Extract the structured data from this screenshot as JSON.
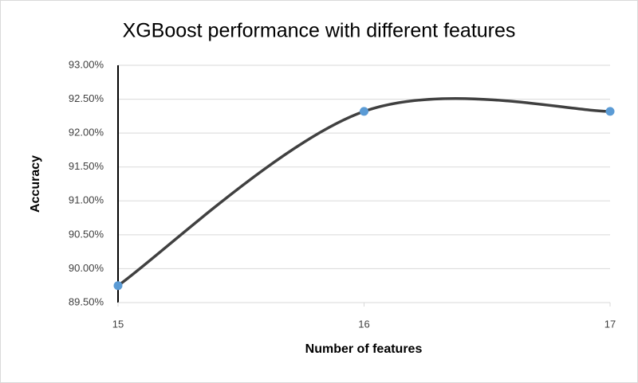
{
  "chart_data": {
    "type": "line",
    "title": "XGBoost performance with different features",
    "x_label": "Number of features",
    "y_label": "Accuracy",
    "x": [
      15,
      16,
      17
    ],
    "series": [
      {
        "name": "Accuracy",
        "color": "#404040",
        "marker_color": "#5b9bd5",
        "values": [
          89.75,
          92.32,
          92.32
        ]
      }
    ],
    "xlim": [
      15,
      17
    ],
    "xticks": [
      15,
      16,
      17
    ],
    "ylim": [
      89.5,
      93
    ],
    "yticks": [
      {
        "value": 89.5,
        "label": "89.50%"
      },
      {
        "value": 90,
        "label": "90.00%"
      },
      {
        "value": 90.5,
        "label": "90.50%"
      },
      {
        "value": 91,
        "label": "91.00%"
      },
      {
        "value": 91.5,
        "label": "91.50%"
      },
      {
        "value": 92,
        "label": "92.00%"
      },
      {
        "value": 92.5,
        "label": "92.50%"
      },
      {
        "value": 93,
        "label": "93.00%"
      }
    ],
    "grid": true,
    "smooth": true,
    "legend": false
  }
}
